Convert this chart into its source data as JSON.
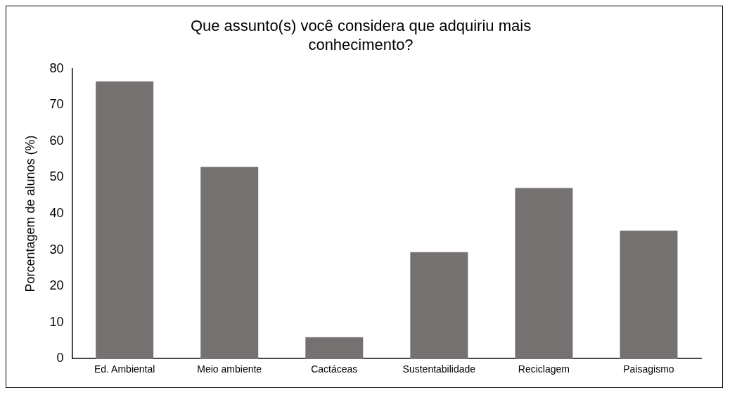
{
  "chart_data": {
    "type": "bar",
    "title": "Que assunto(s) você considera que adquiriu mais conhecimento?",
    "ylabel": "Porcentagem de alunos (%)",
    "categories": [
      "Ed. Ambiental",
      "Meio ambiente",
      "Cactáceas",
      "Sustentabilidade",
      "Reciclagem",
      "Paisagismo"
    ],
    "values": [
      76.5,
      52.9,
      5.9,
      29.4,
      47.1,
      35.3
    ],
    "color": "#767171",
    "ylim": [
      0,
      80
    ],
    "yticks": [
      0,
      10,
      20,
      30,
      40,
      50,
      60,
      70,
      80
    ],
    "grid": false,
    "legend": false
  }
}
